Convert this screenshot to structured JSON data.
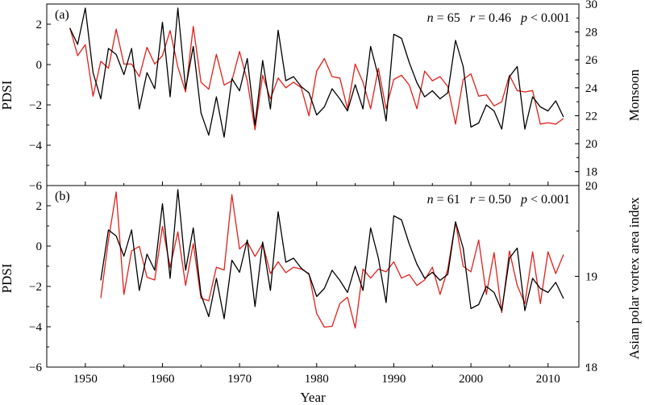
{
  "figure": {
    "xlabel": "Year",
    "x_ticks": [
      1950,
      1960,
      1970,
      1980,
      1990,
      2000,
      2010
    ],
    "xlim": [
      1945,
      2014
    ]
  },
  "chart_data": [
    {
      "type": "line",
      "panel_label": "(a)",
      "stats": {
        "n": "n",
        "n_value": " = 65",
        "r": "r",
        "r_value": " = 0.46",
        "p": "p",
        "p_value": " < 0.001"
      },
      "ylabel_left": "PDSI",
      "ylabel_right": "Monsoon",
      "ylim_left": [
        -6,
        3
      ],
      "y_ticks_left": [
        -6,
        -4,
        -2,
        0,
        2
      ],
      "ylim_right": [
        17,
        30
      ],
      "y_ticks_right": [
        18,
        20,
        22,
        24,
        26,
        28,
        30
      ],
      "series": [
        {
          "axis": "left",
          "color": "#000000",
          "x": [
            1948,
            1949,
            1950,
            1951,
            1952,
            1953,
            1954,
            1955,
            1956,
            1957,
            1958,
            1959,
            1960,
            1961,
            1962,
            1963,
            1964,
            1965,
            1966,
            1967,
            1968,
            1969,
            1970,
            1971,
            1972,
            1973,
            1974,
            1975,
            1976,
            1977,
            1978,
            1979,
            1980,
            1981,
            1982,
            1983,
            1984,
            1985,
            1986,
            1987,
            1988,
            1989,
            1990,
            1991,
            1992,
            1993,
            1994,
            1995,
            1996,
            1997,
            1998,
            1999,
            2000,
            2001,
            2002,
            2003,
            2004,
            2005,
            2006,
            2007,
            2008,
            2009,
            2010,
            2011,
            2012
          ],
          "values": [
            1.8,
            1.0,
            2.8,
            -0.4,
            -1.7,
            0.8,
            0.5,
            -0.5,
            0.8,
            -2.2,
            -0.4,
            -1.2,
            2.1,
            -1.6,
            2.8,
            -1.2,
            0.9,
            -2.4,
            -3.5,
            -1.6,
            -3.6,
            -0.7,
            -1.3,
            0.3,
            -3.0,
            0.2,
            -2.2,
            1.7,
            -0.8,
            -0.6,
            -1.1,
            -1.4,
            -2.5,
            -2.1,
            -1.2,
            -1.7,
            -2.3,
            -1.0,
            -2.2,
            0.9,
            -0.6,
            -2.8,
            1.5,
            1.3,
            0.1,
            -0.9,
            -1.6,
            -1.3,
            -1.7,
            -1.4,
            1.2,
            -0.1,
            -3.1,
            -2.9,
            -2.0,
            -2.3,
            -3.2,
            -0.6,
            -0.1,
            -3.2,
            -1.6,
            -2.1,
            -2.3,
            -1.8,
            -2.6
          ]
        },
        {
          "axis": "right",
          "color": "#e0201b",
          "x": [
            1948,
            1949,
            1950,
            1951,
            1952,
            1953,
            1954,
            1955,
            1956,
            1957,
            1958,
            1959,
            1960,
            1961,
            1962,
            1963,
            1964,
            1965,
            1966,
            1967,
            1968,
            1969,
            1970,
            1971,
            1972,
            1973,
            1974,
            1975,
            1976,
            1977,
            1978,
            1979,
            1980,
            1981,
            1982,
            1983,
            1984,
            1985,
            1986,
            1987,
            1988,
            1989,
            1990,
            1991,
            1992,
            1993,
            1994,
            1995,
            1996,
            1997,
            1998,
            1999,
            2000,
            2001,
            2002,
            2003,
            2004,
            2005,
            2006,
            2007,
            2008,
            2009,
            2010,
            2011,
            2012
          ],
          "values": [
            28.3,
            26.3,
            27.1,
            23.4,
            25.9,
            25.4,
            28.2,
            25.7,
            25.7,
            24.8,
            26.9,
            25.7,
            26.3,
            28.1,
            25.5,
            23.7,
            28.4,
            24.4,
            23.9,
            26.4,
            24.2,
            24.5,
            26.6,
            24.5,
            21.0,
            24.9,
            23.2,
            24.7,
            24.0,
            24.4,
            24.0,
            22.0,
            25.2,
            26.1,
            24.8,
            24.7,
            22.5,
            25.7,
            24.4,
            22.5,
            25.4,
            22.5,
            24.6,
            24.9,
            24.2,
            22.5,
            25.2,
            24.5,
            24.8,
            24.1,
            21.4,
            24.6,
            25.0,
            23.4,
            23.5,
            22.7,
            23.0,
            24.9,
            23.8,
            23.7,
            23.8,
            21.4,
            21.5,
            21.4,
            21.8
          ]
        }
      ]
    },
    {
      "type": "line",
      "panel_label": "(b)",
      "stats": {
        "n": "n",
        "n_value": " = 61",
        "r": "r",
        "r_value": " = 0.50",
        "p": "p",
        "p_value": " < 0.001"
      },
      "ylabel_left": "PDSI",
      "ylabel_right": "Asian polar vortex area index",
      "ylim_left": [
        -6,
        3
      ],
      "y_ticks_left": [
        -6,
        -4,
        -2,
        0,
        2
      ],
      "ylim_right": [
        18,
        20
      ],
      "y_ticks_right": [
        18,
        19,
        20
      ],
      "series": [
        {
          "axis": "left",
          "color": "#000000",
          "x": [
            1952,
            1953,
            1954,
            1955,
            1956,
            1957,
            1958,
            1959,
            1960,
            1961,
            1962,
            1963,
            1964,
            1965,
            1966,
            1967,
            1968,
            1969,
            1970,
            1971,
            1972,
            1973,
            1974,
            1975,
            1976,
            1977,
            1978,
            1979,
            1980,
            1981,
            1982,
            1983,
            1984,
            1985,
            1986,
            1987,
            1988,
            1989,
            1990,
            1991,
            1992,
            1993,
            1994,
            1995,
            1996,
            1997,
            1998,
            1999,
            2000,
            2001,
            2002,
            2003,
            2004,
            2005,
            2006,
            2007,
            2008,
            2009,
            2010,
            2011,
            2012
          ],
          "values": [
            -1.7,
            0.8,
            0.5,
            -0.5,
            0.8,
            -2.2,
            -0.4,
            -1.2,
            2.1,
            -1.6,
            2.8,
            -1.2,
            0.9,
            -2.4,
            -3.5,
            -1.6,
            -3.6,
            -0.7,
            -1.3,
            0.3,
            -3.0,
            0.2,
            -2.2,
            1.7,
            -0.8,
            -0.6,
            -1.1,
            -1.4,
            -2.5,
            -2.1,
            -1.2,
            -1.7,
            -2.3,
            -1.0,
            -2.2,
            0.9,
            -0.6,
            -2.8,
            1.5,
            1.3,
            0.1,
            -0.9,
            -1.6,
            -1.3,
            -1.7,
            -1.4,
            1.2,
            -0.1,
            -3.1,
            -2.9,
            -2.0,
            -2.3,
            -3.2,
            -0.6,
            -0.1,
            -3.2,
            -1.6,
            -2.1,
            -2.3,
            -1.8,
            -2.6
          ]
        },
        {
          "axis": "right",
          "color": "#e0201b",
          "x": [
            1952,
            1953,
            1954,
            1955,
            1956,
            1957,
            1958,
            1959,
            1960,
            1961,
            1962,
            1963,
            1964,
            1965,
            1966,
            1967,
            1968,
            1969,
            1970,
            1971,
            1972,
            1973,
            1974,
            1975,
            1976,
            1977,
            1978,
            1979,
            1980,
            1981,
            1982,
            1983,
            1984,
            1985,
            1986,
            1987,
            1988,
            1989,
            1990,
            1991,
            1992,
            1993,
            1994,
            1995,
            1996,
            1997,
            1998,
            1999,
            2000,
            2001,
            2002,
            2003,
            2004,
            2005,
            2006,
            2007,
            2008,
            2009,
            2010,
            2011,
            2012
          ],
          "values": [
            18.76,
            19.4,
            19.93,
            18.8,
            19.28,
            19.33,
            18.99,
            18.96,
            19.55,
            19.1,
            19.49,
            18.9,
            19.36,
            18.76,
            18.73,
            19.1,
            19.07,
            19.9,
            19.3,
            19.38,
            19.22,
            19.36,
            19.03,
            19.16,
            19.04,
            19.1,
            19.08,
            19.03,
            18.59,
            18.44,
            18.45,
            18.7,
            18.77,
            18.43,
            19.08,
            18.98,
            19.08,
            19.05,
            19.16,
            18.98,
            19.02,
            18.9,
            18.96,
            19.1,
            18.8,
            19.08,
            19.6,
            19.11,
            19.05,
            19.4,
            18.8,
            19.26,
            18.6,
            19.28,
            18.9,
            18.7,
            19.27,
            18.7,
            19.27,
            19.03,
            19.24
          ]
        }
      ]
    }
  ]
}
